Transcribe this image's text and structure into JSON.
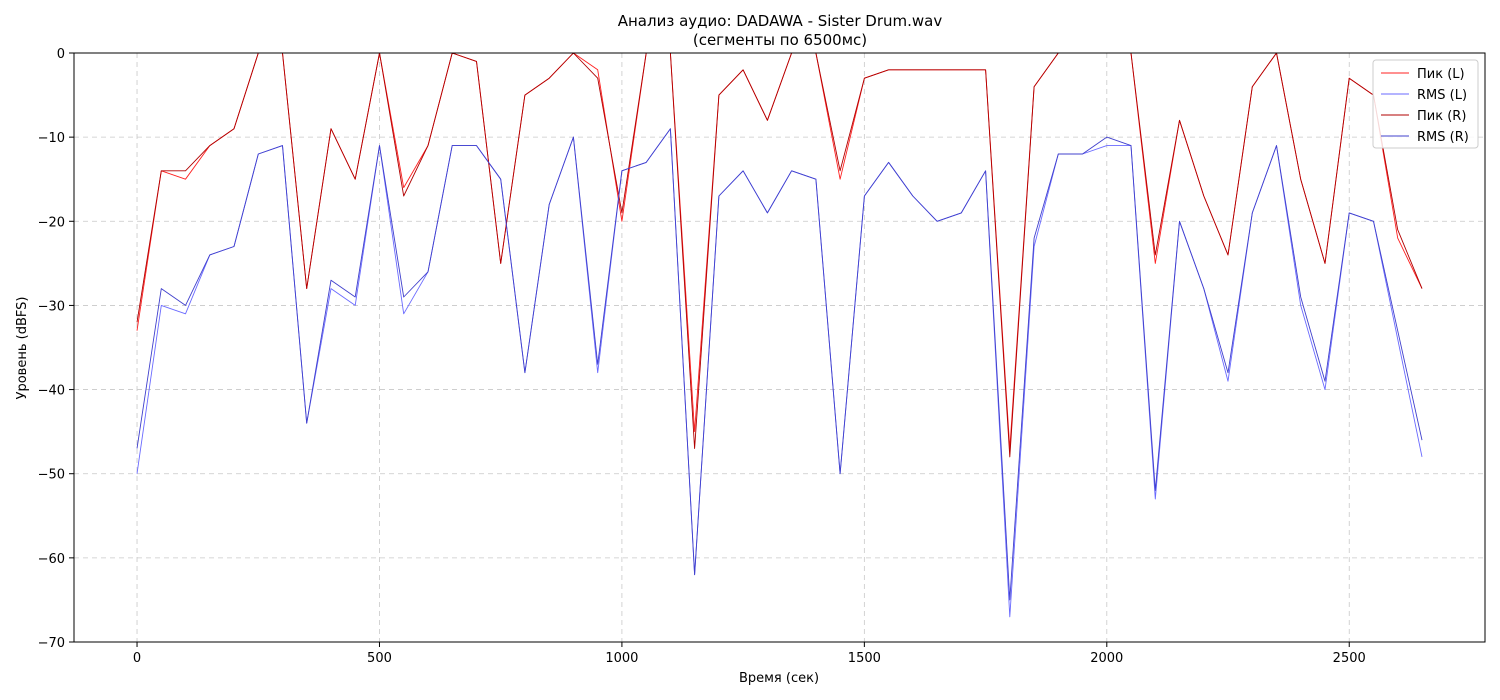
{
  "chart_data": {
    "type": "line",
    "title": "Анализ аудио: DADAWA - Sister Drum.wav",
    "subtitle": "(сегменты по 6500мс)",
    "xlabel": "Время (сек)",
    "ylabel": "Уровень (dBFS)",
    "xlim": [
      -130,
      2780
    ],
    "ylim": [
      -70,
      0
    ],
    "xticks": [
      0,
      500,
      1000,
      1500,
      2000,
      2500
    ],
    "yticks": [
      0,
      -10,
      -20,
      -30,
      -40,
      -50,
      -60,
      -70
    ],
    "xtick_labels": [
      "0",
      "500",
      "1000",
      "1500",
      "2000",
      "2500"
    ],
    "ytick_labels": [
      "0",
      "−10",
      "−20",
      "−30",
      "−40",
      "−50",
      "−60",
      "−70"
    ],
    "grid": true,
    "legend_position": "top-right",
    "x": [
      0,
      50,
      100,
      150,
      200,
      250,
      300,
      350,
      400,
      450,
      500,
      550,
      600,
      650,
      700,
      750,
      800,
      850,
      900,
      950,
      1000,
      1050,
      1100,
      1150,
      1200,
      1250,
      1300,
      1350,
      1400,
      1450,
      1500,
      1550,
      1600,
      1650,
      1700,
      1750,
      1800,
      1850,
      1900,
      1950,
      2000,
      2050,
      2100,
      2150,
      2200,
      2250,
      2300,
      2350,
      2400,
      2450,
      2500,
      2550,
      2600,
      2650
    ],
    "series": [
      {
        "name": "Пик (L)",
        "color": "#ff2020",
        "values": [
          -33,
          -14,
          -15,
          -11,
          -9,
          0,
          0,
          -28,
          -9,
          -15,
          0,
          -16,
          -11,
          0,
          -1,
          -25,
          -5,
          -3,
          0,
          -2,
          -20,
          0,
          0,
          -45,
          -5,
          -2,
          -8,
          0,
          0,
          -15,
          -3,
          -2,
          -2,
          -2,
          -2,
          -2,
          -47,
          -4,
          0,
          0,
          0,
          0,
          -25,
          -8,
          -17,
          -24,
          -4,
          0,
          -15,
          -25,
          -3,
          -5,
          -22,
          -28
        ]
      },
      {
        "name": "RMS (L)",
        "color": "#6a6aff",
        "values": [
          -50,
          -30,
          -31,
          -24,
          -23,
          -12,
          -11,
          -44,
          -28,
          -30,
          -11,
          -31,
          -26,
          -11,
          -11,
          -15,
          -38,
          -18,
          -10,
          -38,
          -14,
          -13,
          -9,
          -62,
          -17,
          -14,
          -19,
          -14,
          -15,
          -50,
          -17,
          -13,
          -17,
          -20,
          -19,
          -14,
          -67,
          -23,
          -12,
          -12,
          -11,
          -11,
          -53,
          -20,
          -28,
          -39,
          -19,
          -11,
          -30,
          -40,
          -19,
          -20,
          -34,
          -48
        ]
      },
      {
        "name": "Пик (R)",
        "color": "#b00000",
        "values": [
          -32,
          -14,
          -14,
          -11,
          -9,
          0,
          0,
          -28,
          -9,
          -15,
          0,
          -17,
          -11,
          0,
          -1,
          -25,
          -5,
          -3,
          0,
          -3,
          -19,
          0,
          0,
          -47,
          -5,
          -2,
          -8,
          0,
          0,
          -14,
          -3,
          -2,
          -2,
          -2,
          -2,
          -2,
          -48,
          -4,
          0,
          0,
          0,
          0,
          -24,
          -8,
          -17,
          -24,
          -4,
          0,
          -15,
          -25,
          -3,
          -5,
          -21,
          -28
        ]
      },
      {
        "name": "RMS (R)",
        "color": "#4040cc",
        "values": [
          -47,
          -28,
          -30,
          -24,
          -23,
          -12,
          -11,
          -44,
          -27,
          -29,
          -11,
          -29,
          -26,
          -11,
          -11,
          -15,
          -38,
          -18,
          -10,
          -37,
          -14,
          -13,
          -9,
          -62,
          -17,
          -14,
          -19,
          -14,
          -15,
          -50,
          -17,
          -13,
          -17,
          -20,
          -19,
          -14,
          -65,
          -22,
          -12,
          -12,
          -10,
          -11,
          -52,
          -20,
          -28,
          -38,
          -19,
          -11,
          -29,
          -39,
          -19,
          -20,
          -33,
          -46
        ]
      }
    ]
  }
}
